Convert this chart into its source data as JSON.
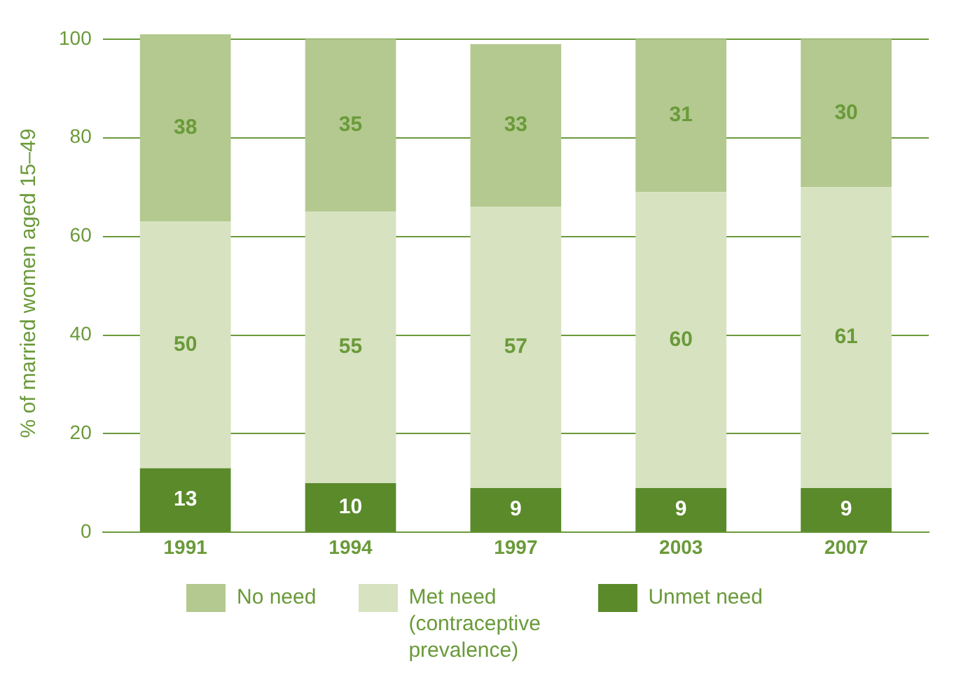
{
  "chart_data": {
    "type": "bar",
    "stacked": true,
    "ylabel": "% of married women aged 15–49",
    "categories": [
      "1991",
      "1994",
      "1997",
      "2003",
      "2007"
    ],
    "series": [
      {
        "name": "Unmet need",
        "color": "#5a8a2a",
        "values": [
          13,
          10,
          9,
          9,
          9
        ]
      },
      {
        "name": "Met need (contraceptive prevalence)",
        "color": "#d7e2c0",
        "values": [
          50,
          55,
          57,
          60,
          61
        ]
      },
      {
        "name": "No need",
        "color": "#b3c98f",
        "values": [
          38,
          35,
          33,
          31,
          30
        ]
      }
    ],
    "ylim": [
      0,
      101
    ],
    "yticks": [
      0,
      20,
      40,
      60,
      80,
      100
    ],
    "grid": "y",
    "legend": "bottom",
    "data_labels": true
  }
}
